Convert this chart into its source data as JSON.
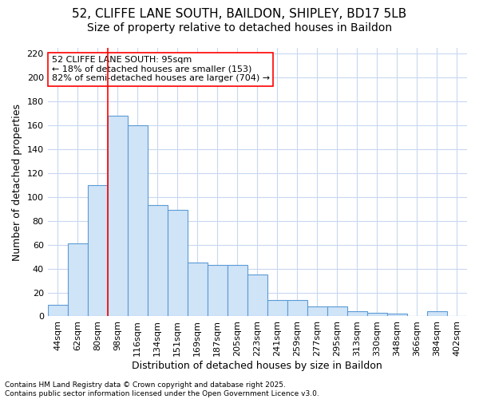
{
  "title1": "52, CLIFFE LANE SOUTH, BAILDON, SHIPLEY, BD17 5LB",
  "title2": "Size of property relative to detached houses in Baildon",
  "xlabel": "Distribution of detached houses by size in Baildon",
  "ylabel": "Number of detached properties",
  "categories": [
    "44sqm",
    "62sqm",
    "80sqm",
    "98sqm",
    "116sqm",
    "134sqm",
    "151sqm",
    "169sqm",
    "187sqm",
    "205sqm",
    "223sqm",
    "241sqm",
    "259sqm",
    "277sqm",
    "295sqm",
    "313sqm",
    "330sqm",
    "348sqm",
    "366sqm",
    "384sqm",
    "402sqm"
  ],
  "values": [
    10,
    61,
    110,
    168,
    160,
    93,
    89,
    45,
    43,
    43,
    35,
    14,
    14,
    8,
    8,
    4,
    3,
    2,
    0,
    4,
    0
  ],
  "bar_color": "#d0e4f7",
  "bar_edge_color": "#5b9bd5",
  "vline_x_index": 3,
  "vline_color": "#ff0000",
  "annotation_text": "52 CLIFFE LANE SOUTH: 95sqm\n← 18% of detached houses are smaller (153)\n82% of semi-detached houses are larger (704) →",
  "ylim": [
    0,
    225
  ],
  "yticks": [
    0,
    20,
    40,
    60,
    80,
    100,
    120,
    140,
    160,
    180,
    200,
    220
  ],
  "footnote": "Contains HM Land Registry data © Crown copyright and database right 2025.\nContains public sector information licensed under the Open Government Licence v3.0.",
  "bg_color": "#ffffff",
  "grid_color": "#c8d8f0",
  "title1_fontsize": 11,
  "title2_fontsize": 10,
  "axis_label_fontsize": 9,
  "tick_fontsize": 8,
  "annot_fontsize": 8
}
